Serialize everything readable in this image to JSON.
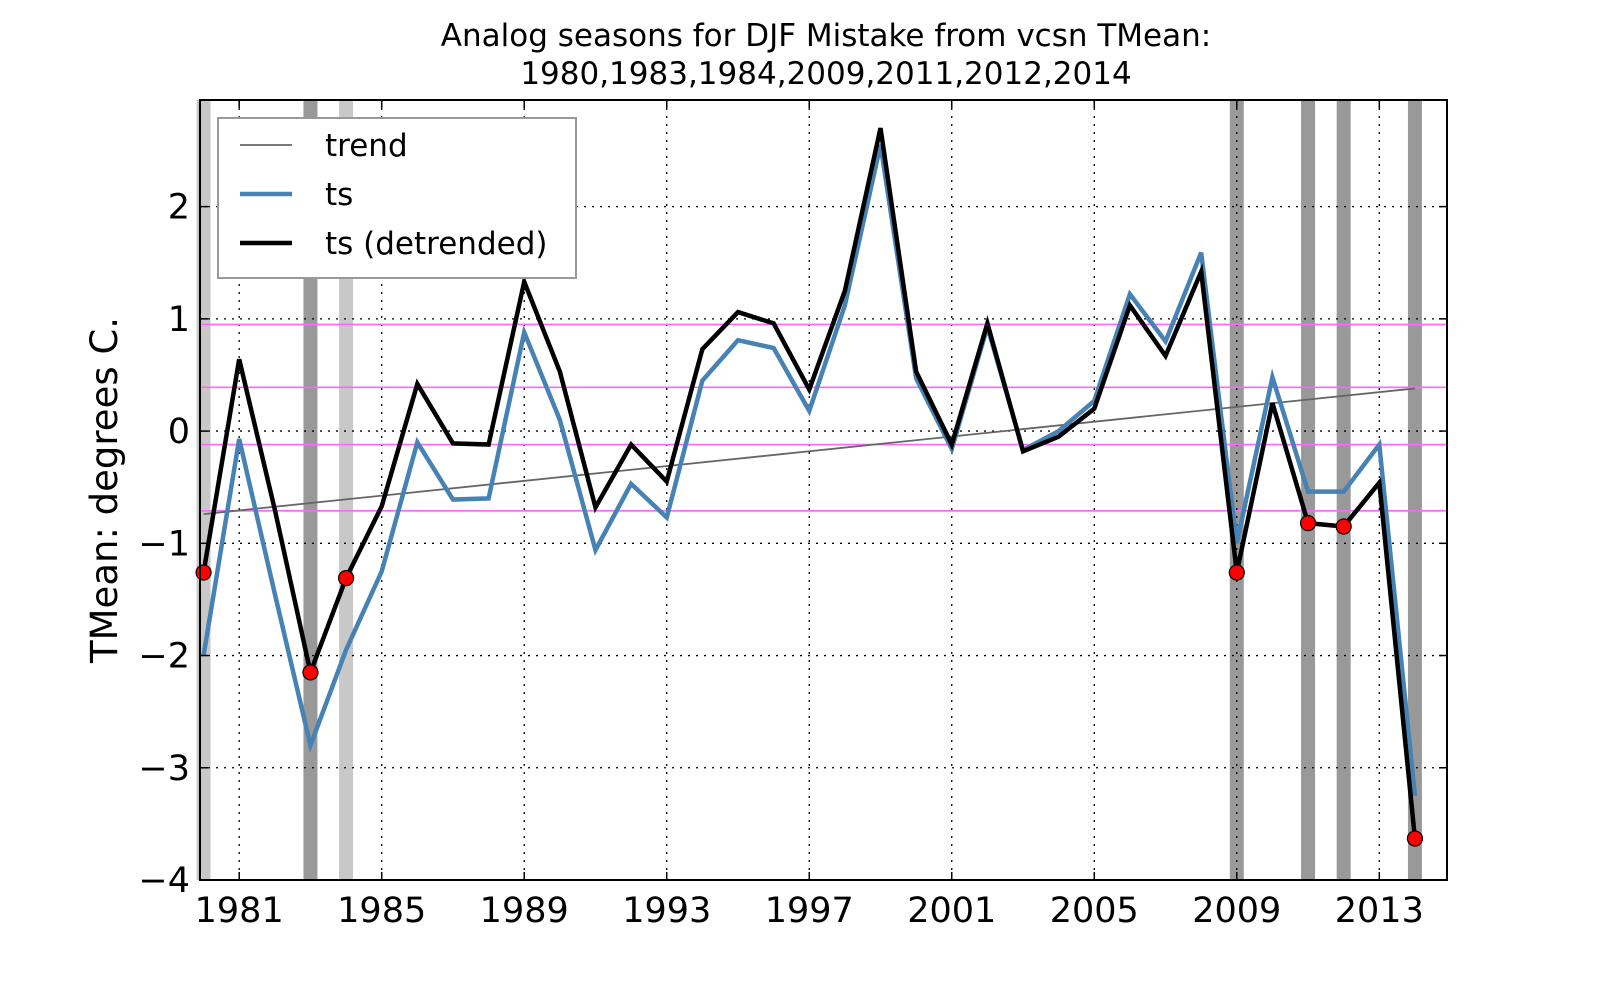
{
  "chart_data": {
    "type": "line",
    "title": "Analog seasons for DJF Mistake from vcsn TMean:",
    "subtitle": "1980,1983,1984,2009,2011,2012,2014",
    "xlabel": "",
    "ylabel": "TMean: degrees C.",
    "xlim": [
      1979.9,
      2014.9
    ],
    "ylim": [
      -4,
      2.95
    ],
    "xticks": [
      1981,
      1985,
      1989,
      1993,
      1997,
      2001,
      2005,
      2009,
      2013
    ],
    "xtick_labels": [
      "1981",
      "1985",
      "1989",
      "1993",
      "1997",
      "2001",
      "2005",
      "2009",
      "2013"
    ],
    "yticks": [
      -4,
      -3,
      -2,
      -1,
      0,
      1,
      2
    ],
    "ytick_labels": [
      "−4",
      "−3",
      "−2",
      "−1",
      "0",
      "1",
      "2"
    ],
    "grid": true,
    "legend_position": "top-left",
    "years": [
      1980,
      1981,
      1982,
      1983,
      1984,
      1985,
      1986,
      1987,
      1988,
      1989,
      1990,
      1991,
      1992,
      1993,
      1994,
      1995,
      1996,
      1997,
      1998,
      1999,
      2000,
      2001,
      2002,
      2003,
      2004,
      2005,
      2006,
      2007,
      2008,
      2009,
      2010,
      2011,
      2012,
      2013,
      2014
    ],
    "series": [
      {
        "name": "trend",
        "color": "#666666",
        "values": [
          -0.74,
          0.38
        ],
        "x": [
          1980,
          2014
        ]
      },
      {
        "name": "ts",
        "color": "#4682b4",
        "values": [
          -2.0,
          -0.07,
          -1.45,
          -2.8,
          -1.95,
          -1.25,
          -0.1,
          -0.61,
          -0.6,
          0.88,
          0.1,
          -1.06,
          -0.47,
          -0.77,
          0.45,
          0.81,
          0.74,
          0.18,
          1.12,
          2.55,
          0.47,
          -0.16,
          0.93,
          -0.17,
          0.0,
          0.27,
          1.22,
          0.8,
          1.59,
          -1.0,
          0.48,
          -0.54,
          -0.54,
          -0.12,
          -3.25
        ]
      },
      {
        "name": "ts (detrended)",
        "color": "#000000",
        "values": [
          -1.26,
          0.64,
          -0.7,
          -2.15,
          -1.31,
          -0.67,
          0.42,
          -0.11,
          -0.12,
          1.33,
          0.53,
          -0.68,
          -0.12,
          -0.45,
          0.73,
          1.06,
          0.96,
          0.37,
          1.25,
          2.7,
          0.53,
          -0.12,
          0.96,
          -0.18,
          -0.05,
          0.2,
          1.12,
          0.67,
          1.42,
          -1.26,
          0.25,
          -0.82,
          -0.85,
          -0.46,
          -3.63
        ]
      }
    ],
    "analog_years": [
      1980,
      1983,
      1984,
      2009,
      2011,
      2012,
      2014
    ],
    "analog_marker_color": "#ff0000",
    "analog_bar_color": "#999999",
    "analog_bar_color_light": "#c8c8c8",
    "reference_lines": {
      "color": "#ff66ff",
      "values": [
        0.95,
        0.39,
        -0.12,
        -0.71
      ]
    }
  }
}
